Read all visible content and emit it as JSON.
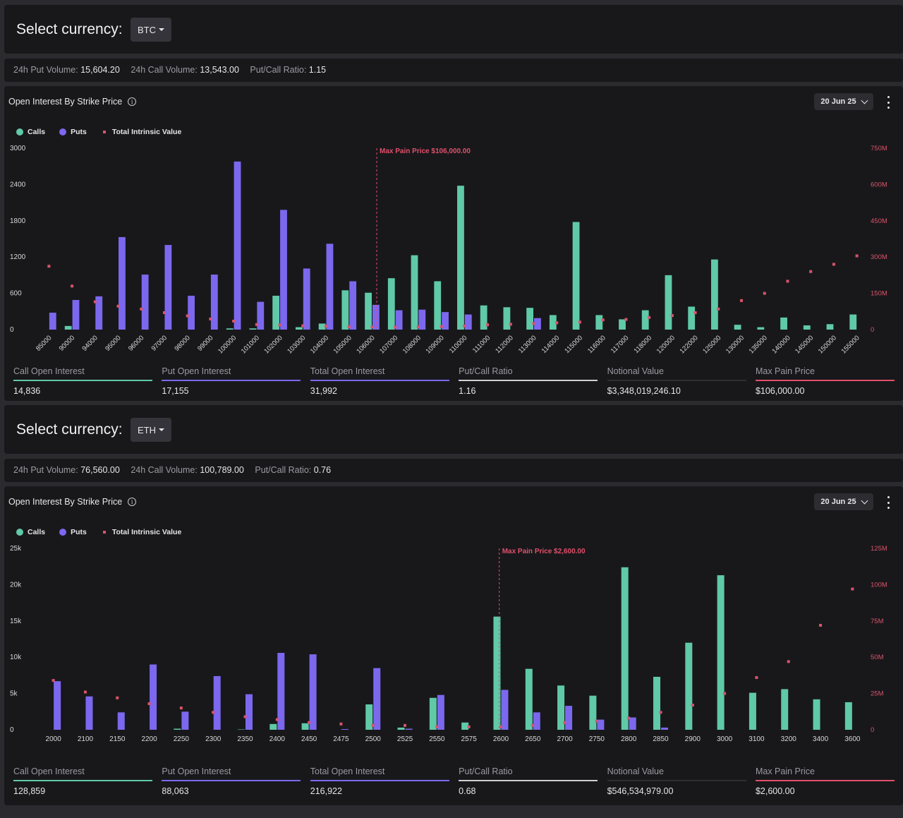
{
  "sections": [
    {
      "select_label": "Select currency:",
      "currency": "BTC",
      "stats": [
        {
          "label": "24h Put Volume:",
          "value": "15,604.20"
        },
        {
          "label": "24h Call Volume:",
          "value": "13,543.00"
        },
        {
          "label": "Put/Call Ratio:",
          "value": "1.15"
        }
      ],
      "chart_title": "Open Interest By Strike Price",
      "expiry": "20 Jun 25",
      "legend": {
        "calls": "Calls",
        "puts": "Puts",
        "tiv": "Total Intrinsic Value"
      },
      "metrics": [
        {
          "label": "Call Open Interest",
          "value": "14,836",
          "color": "#5fc9a8"
        },
        {
          "label": "Put Open Interest",
          "value": "17,155",
          "color": "#7b68ee"
        },
        {
          "label": "Total Open Interest",
          "value": "31,992",
          "color": "#7b68ee"
        },
        {
          "label": "Put/Call Ratio",
          "value": "1.16",
          "color": "#cfcfd4"
        },
        {
          "label": "Notional Value",
          "value": "$3,348,019,246.10",
          "color": "#2e2e33"
        },
        {
          "label": "Max Pain Price",
          "value": "$106,000.00",
          "color": "#e0506a"
        }
      ],
      "chart_data": {
        "type": "bar",
        "categories": [
          "85000",
          "90000",
          "94000",
          "95000",
          "96000",
          "97000",
          "98000",
          "99000",
          "100000",
          "101000",
          "102000",
          "103000",
          "104000",
          "105000",
          "106000",
          "107000",
          "108000",
          "109000",
          "110000",
          "111000",
          "112000",
          "113000",
          "114000",
          "115000",
          "116000",
          "117000",
          "118000",
          "120000",
          "122000",
          "125000",
          "130000",
          "135000",
          "140000",
          "145000",
          "150000",
          "155000"
        ],
        "x_label_rotate": true,
        "yticks": [
          "0",
          "600",
          "1200",
          "1800",
          "2400",
          "3000"
        ],
        "ylim": [
          0,
          3000
        ],
        "y2ticks": [
          "0",
          "150M",
          "300M",
          "450M",
          "600M",
          "750M"
        ],
        "y2lim": [
          0,
          750
        ],
        "max_pain_label": "Max Pain Price $106,000.00",
        "max_pain_index": 14.2,
        "series": [
          {
            "name": "Calls",
            "color": "#5fc9a8",
            "values": [
              0,
              60,
              0,
              0,
              0,
              0,
              0,
              0,
              20,
              20,
              560,
              40,
              100,
              650,
              610,
              850,
              1230,
              800,
              2380,
              400,
              370,
              360,
              240,
              1780,
              240,
              170,
              320,
              900,
              380,
              1160,
              80,
              40,
              200,
              70,
              90,
              250
            ]
          },
          {
            "name": "Puts",
            "color": "#7b68ee",
            "values": [
              280,
              490,
              550,
              1530,
              910,
              1400,
              560,
              910,
              2780,
              460,
              1980,
              1010,
              1420,
              800,
              410,
              320,
              330,
              290,
              250,
              0,
              0,
              190,
              0,
              0,
              0,
              0,
              0,
              0,
              0,
              0,
              0,
              0,
              0,
              0,
              0,
              0
            ]
          },
          {
            "name": "Total Intrinsic Value",
            "color": "#d9546a",
            "values": [
              262,
              180,
              115,
              97,
              85,
              70,
              57,
              44,
              35,
              21,
              19,
              16,
              14,
              12,
              11,
              10,
              11,
              13,
              15,
              20,
              22,
              25,
              28,
              31,
              40,
              42,
              50,
              58,
              70,
              85,
              120,
              150,
              200,
              240,
              270,
              305
            ]
          }
        ]
      }
    },
    {
      "select_label": "Select currency:",
      "currency": "ETH",
      "stats": [
        {
          "label": "24h Put Volume:",
          "value": "76,560.00"
        },
        {
          "label": "24h Call Volume:",
          "value": "100,789.00"
        },
        {
          "label": "Put/Call Ratio:",
          "value": "0.76"
        }
      ],
      "chart_title": "Open Interest By Strike Price",
      "expiry": "20 Jun 25",
      "legend": {
        "calls": "Calls",
        "puts": "Puts",
        "tiv": "Total Intrinsic Value"
      },
      "metrics": [
        {
          "label": "Call Open Interest",
          "value": "128,859",
          "color": "#5fc9a8"
        },
        {
          "label": "Put Open Interest",
          "value": "88,063",
          "color": "#7b68ee"
        },
        {
          "label": "Total Open Interest",
          "value": "216,922",
          "color": "#7b68ee"
        },
        {
          "label": "Put/Call Ratio",
          "value": "0.68",
          "color": "#cfcfd4"
        },
        {
          "label": "Notional Value",
          "value": "$546,534,979.00",
          "color": "#2e2e33"
        },
        {
          "label": "Max Pain Price",
          "value": "$2,600.00",
          "color": "#e0506a"
        }
      ],
      "chart_data": {
        "type": "bar",
        "categories": [
          "2000",
          "2100",
          "2150",
          "2200",
          "2250",
          "2300",
          "2350",
          "2400",
          "2450",
          "2475",
          "2500",
          "2525",
          "2550",
          "2575",
          "2600",
          "2650",
          "2700",
          "2750",
          "2800",
          "2850",
          "2900",
          "3000",
          "3100",
          "3200",
          "3400",
          "3600"
        ],
        "x_label_rotate": false,
        "yticks": [
          "0",
          "5k",
          "10k",
          "15k",
          "20k",
          "25k"
        ],
        "ylim": [
          0,
          25000
        ],
        "y2ticks": [
          "0",
          "25M",
          "50M",
          "75M",
          "100M",
          "125M"
        ],
        "y2lim": [
          0,
          125
        ],
        "max_pain_label": "Max Pain Price $2,600.00",
        "max_pain_index": 13.95,
        "series": [
          {
            "name": "Calls",
            "color": "#5fc9a8",
            "values": [
              0,
              0,
              0,
              0,
              150,
              0,
              50,
              800,
              900,
              0,
              3500,
              300,
              4400,
              1000,
              15600,
              8400,
              6100,
              4700,
              22400,
              7300,
              12000,
              21300,
              5100,
              5600,
              4200,
              3800
            ]
          },
          {
            "name": "Puts",
            "color": "#7b68ee",
            "values": [
              6700,
              4600,
              2400,
              9000,
              2500,
              7400,
              4900,
              10600,
              10400,
              100,
              8500,
              150,
              4800,
              0,
              5500,
              2400,
              3300,
              1400,
              1700,
              300,
              0,
              0,
              0,
              0,
              0,
              0
            ]
          },
          {
            "name": "Total Intrinsic Value",
            "color": "#d9546a",
            "values": [
              34,
              26,
              22,
              18,
              15,
              12,
              9,
              7,
              5,
              4,
              3,
              3,
              2,
              2,
              2,
              3,
              5,
              6,
              8,
              12,
              17,
              25,
              36,
              47,
              72,
              97
            ]
          }
        ]
      }
    }
  ]
}
